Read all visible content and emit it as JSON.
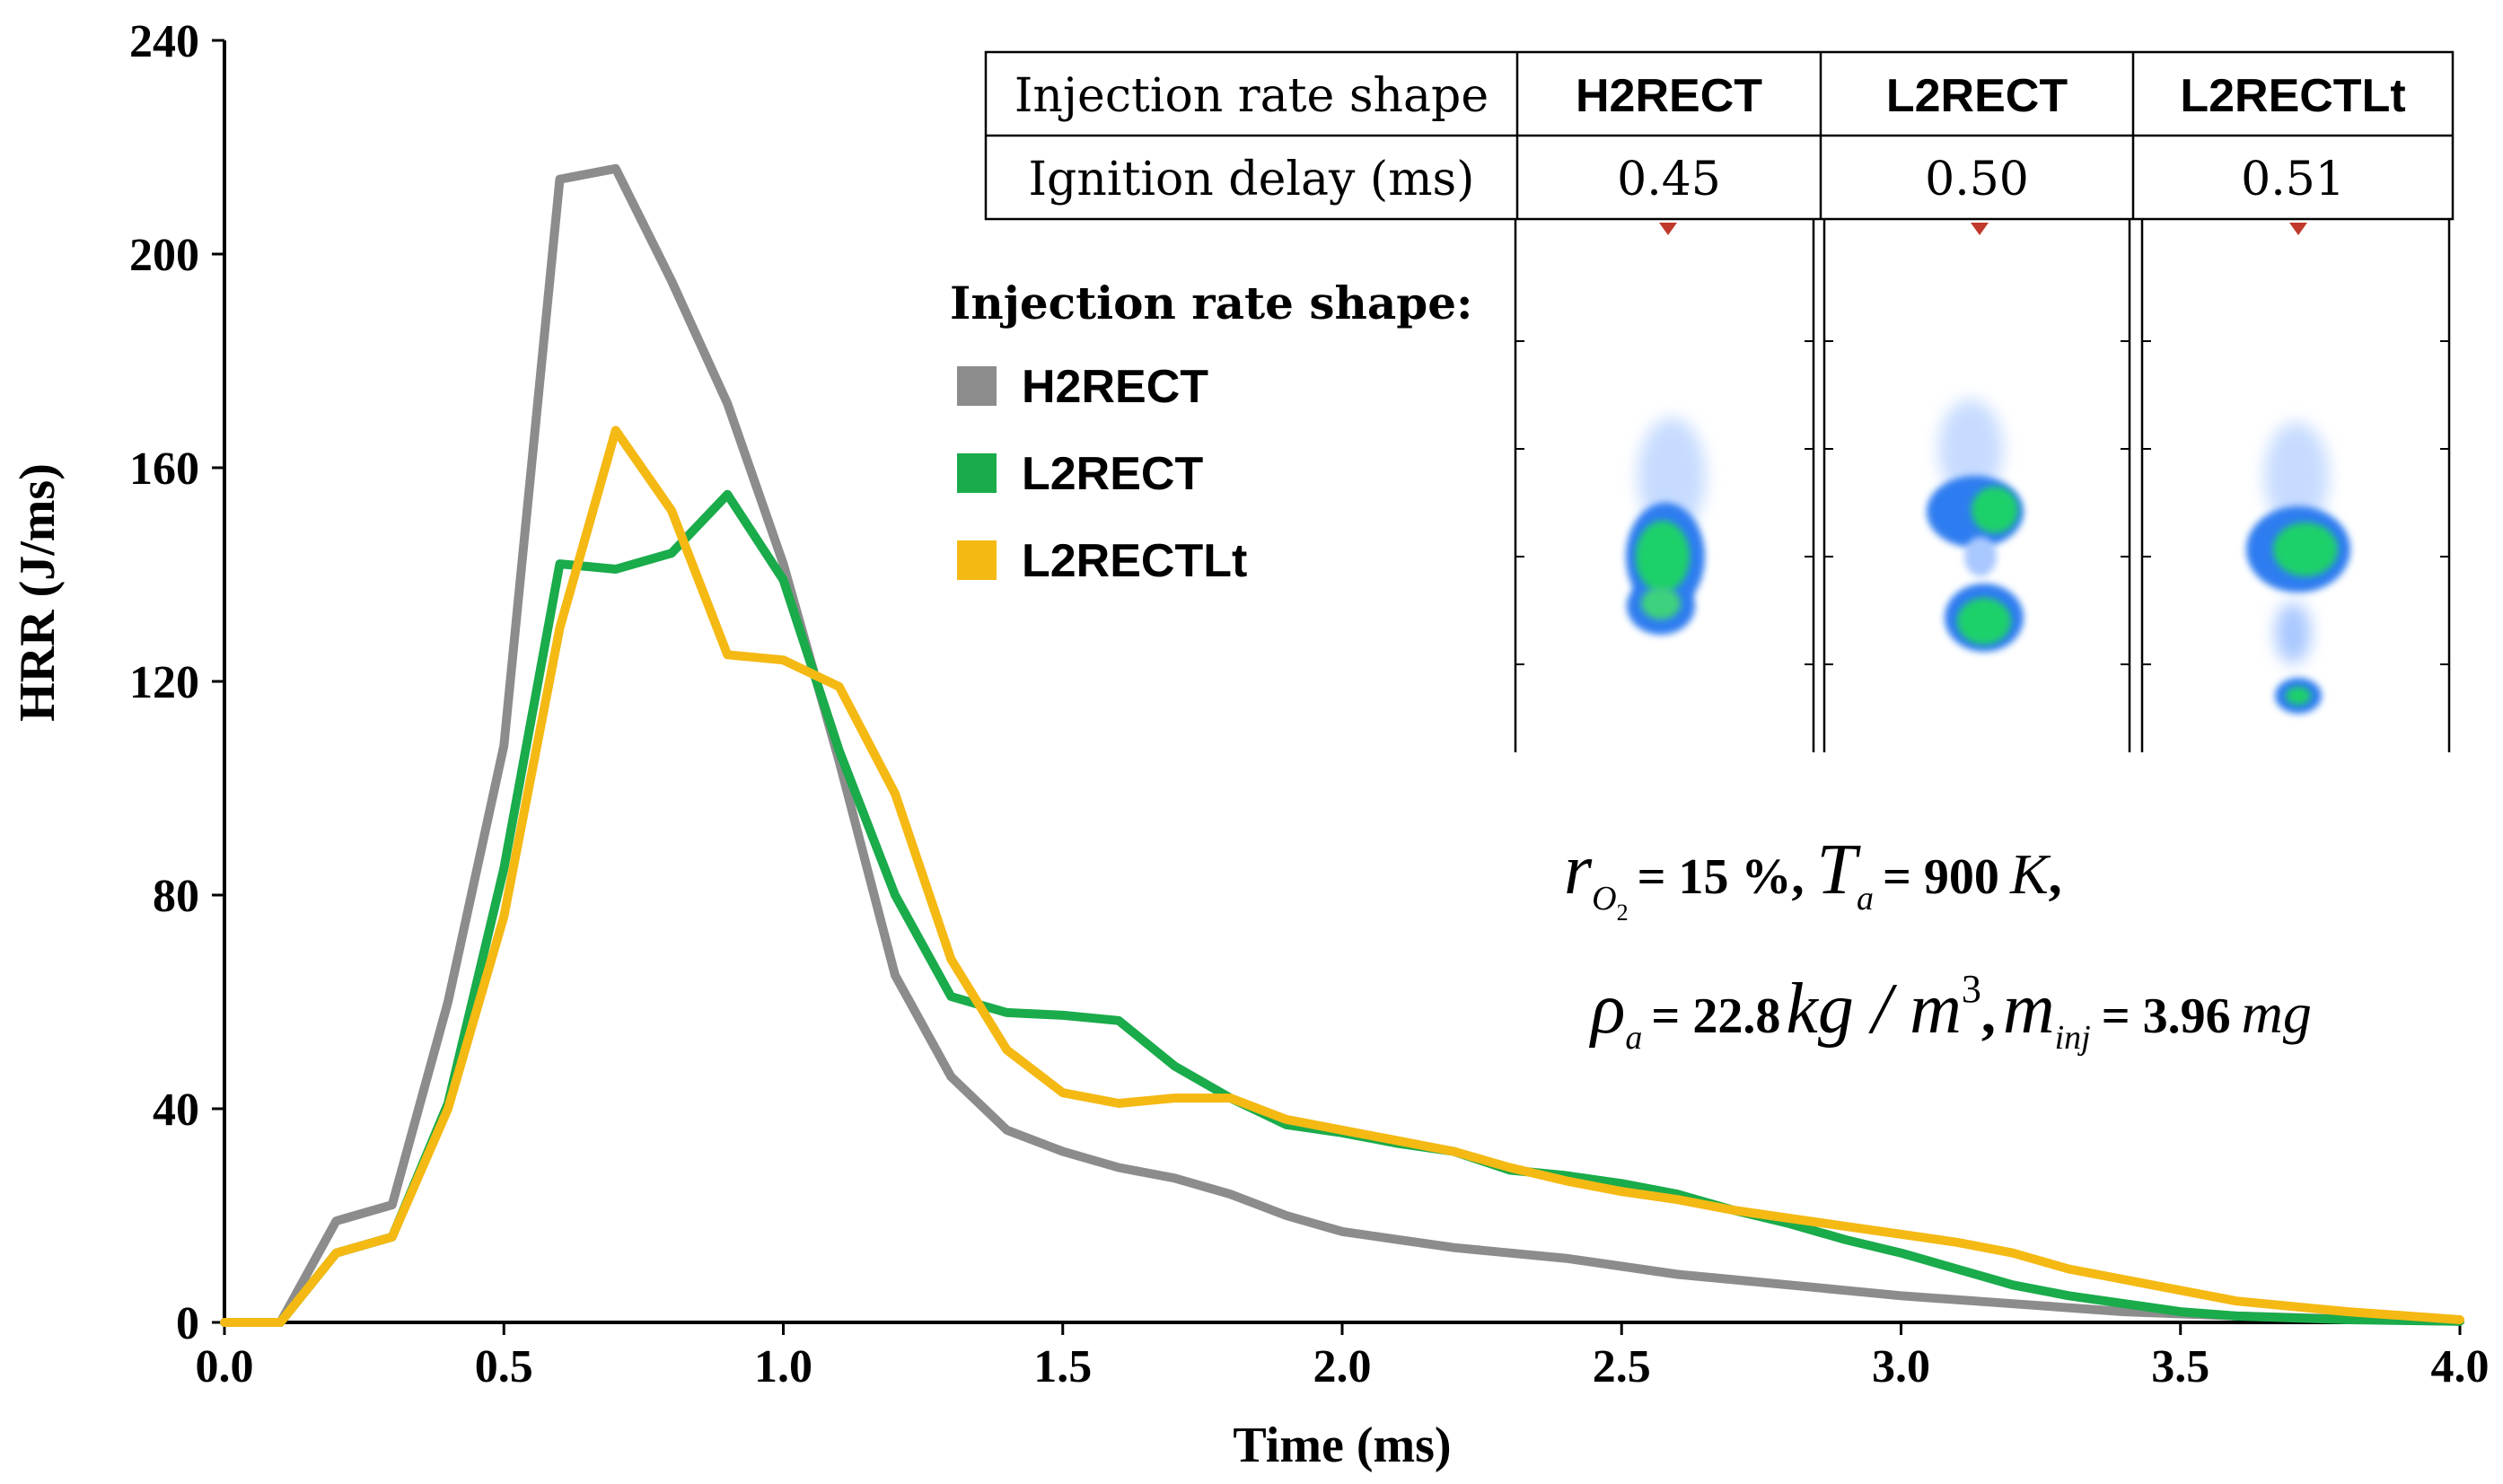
{
  "chart_data": {
    "type": "line",
    "title": "",
    "xlabel": "Time (ms)",
    "ylabel": "HRR (J/ms)",
    "xlim": [
      0.0,
      4.0
    ],
    "ylim": [
      0,
      240
    ],
    "x_ticks": [
      "0.0",
      "0.5",
      "1.0",
      "1.5",
      "2.0",
      "2.5",
      "3.0",
      "3.5",
      "4.0"
    ],
    "y_ticks": [
      "0",
      "40",
      "80",
      "120",
      "160",
      "200",
      "240"
    ],
    "legend_title": "Injection rate shape:",
    "series": [
      {
        "name": "H2RECT",
        "color": "#8c8c8c",
        "points": [
          [
            0.0,
            0
          ],
          [
            0.1,
            0
          ],
          [
            0.2,
            19
          ],
          [
            0.3,
            22
          ],
          [
            0.4,
            60
          ],
          [
            0.5,
            108
          ],
          [
            0.6,
            214
          ],
          [
            0.7,
            216
          ],
          [
            0.8,
            195
          ],
          [
            0.9,
            172
          ],
          [
            1.0,
            142
          ],
          [
            1.1,
            105
          ],
          [
            1.2,
            65
          ],
          [
            1.3,
            46
          ],
          [
            1.4,
            36
          ],
          [
            1.5,
            32
          ],
          [
            1.6,
            29
          ],
          [
            1.7,
            27
          ],
          [
            1.8,
            24
          ],
          [
            1.9,
            20
          ],
          [
            2.0,
            17
          ],
          [
            2.1,
            15.5
          ],
          [
            2.2,
            14
          ],
          [
            2.3,
            13
          ],
          [
            2.4,
            12
          ],
          [
            2.5,
            10.5
          ],
          [
            2.6,
            9
          ],
          [
            2.7,
            8
          ],
          [
            2.8,
            7
          ],
          [
            2.9,
            6
          ],
          [
            3.0,
            5
          ],
          [
            3.2,
            3.5
          ],
          [
            3.4,
            2
          ],
          [
            3.6,
            1.2
          ],
          [
            3.8,
            0.6
          ],
          [
            4.0,
            0.2
          ]
        ]
      },
      {
        "name": "L2RECT",
        "color": "#1aab4b",
        "points": [
          [
            0.0,
            0
          ],
          [
            0.1,
            0
          ],
          [
            0.2,
            13
          ],
          [
            0.3,
            16
          ],
          [
            0.4,
            41
          ],
          [
            0.5,
            85
          ],
          [
            0.6,
            142
          ],
          [
            0.7,
            141
          ],
          [
            0.8,
            144
          ],
          [
            0.9,
            155
          ],
          [
            1.0,
            139
          ],
          [
            1.1,
            107
          ],
          [
            1.2,
            80
          ],
          [
            1.3,
            61
          ],
          [
            1.4,
            58
          ],
          [
            1.5,
            57.5
          ],
          [
            1.6,
            56.5
          ],
          [
            1.7,
            48
          ],
          [
            1.8,
            42
          ],
          [
            1.9,
            37
          ],
          [
            2.0,
            35.5
          ],
          [
            2.1,
            33.5
          ],
          [
            2.2,
            32
          ],
          [
            2.3,
            28.5
          ],
          [
            2.4,
            27.5
          ],
          [
            2.5,
            26
          ],
          [
            2.6,
            24
          ],
          [
            2.7,
            21
          ],
          [
            2.8,
            18.5
          ],
          [
            2.9,
            15.5
          ],
          [
            3.0,
            13
          ],
          [
            3.1,
            10
          ],
          [
            3.2,
            7
          ],
          [
            3.3,
            5
          ],
          [
            3.4,
            3.5
          ],
          [
            3.5,
            2
          ],
          [
            3.6,
            1.2
          ],
          [
            3.8,
            0.5
          ],
          [
            4.0,
            0.2
          ]
        ]
      },
      {
        "name": "L2RECTLt",
        "color": "#f5b914",
        "points": [
          [
            0.0,
            0
          ],
          [
            0.1,
            0
          ],
          [
            0.2,
            13
          ],
          [
            0.3,
            16
          ],
          [
            0.4,
            40
          ],
          [
            0.5,
            76
          ],
          [
            0.6,
            130
          ],
          [
            0.7,
            167
          ],
          [
            0.8,
            152
          ],
          [
            0.9,
            125
          ],
          [
            1.0,
            124
          ],
          [
            1.1,
            119
          ],
          [
            1.2,
            99
          ],
          [
            1.3,
            68
          ],
          [
            1.4,
            51
          ],
          [
            1.5,
            43
          ],
          [
            1.6,
            41
          ],
          [
            1.7,
            42
          ],
          [
            1.8,
            42
          ],
          [
            1.9,
            38
          ],
          [
            2.0,
            36
          ],
          [
            2.1,
            34
          ],
          [
            2.2,
            32
          ],
          [
            2.3,
            29
          ],
          [
            2.4,
            26.5
          ],
          [
            2.5,
            24.5
          ],
          [
            2.6,
            23
          ],
          [
            2.7,
            21
          ],
          [
            2.8,
            19.5
          ],
          [
            2.9,
            18
          ],
          [
            3.0,
            16.5
          ],
          [
            3.1,
            15
          ],
          [
            3.2,
            13
          ],
          [
            3.3,
            10
          ],
          [
            3.4,
            8
          ],
          [
            3.5,
            6
          ],
          [
            3.6,
            4
          ],
          [
            3.7,
            3
          ],
          [
            3.8,
            2
          ],
          [
            4.0,
            0.5
          ]
        ]
      }
    ]
  },
  "table": {
    "rows": [
      [
        "Injection rate shape",
        "H2RECT",
        "L2RECT",
        "L2RECTLt"
      ],
      [
        "Ignition delay (ms)",
        "0.45",
        "0.50",
        "0.51"
      ]
    ]
  },
  "conditions": {
    "line1": {
      "r_sym": "r",
      "r_sub": "O",
      "r_subsub": "2",
      "r_val": "= 15 %,",
      "t_sym": "T",
      "t_sub": "a",
      "t_eq": "= 900",
      "t_unit": "K",
      "t_end": ","
    },
    "line2": {
      "rho_sym": "ρ",
      "rho_sub": "a",
      "rho_eq": "= 22.8",
      "rho_unit_main": "kg / m",
      "rho_unit_exp": "3",
      "rho_end": ",",
      "m_sym": "m",
      "m_sub": "inj",
      "m_eq": "= 3.96",
      "m_unit": "mg"
    }
  },
  "colors": {
    "axis": "#000000",
    "flame_core": "#22d36a",
    "flame_mid": "#1f6fe8",
    "flame_outer": "#9fc4ff"
  }
}
